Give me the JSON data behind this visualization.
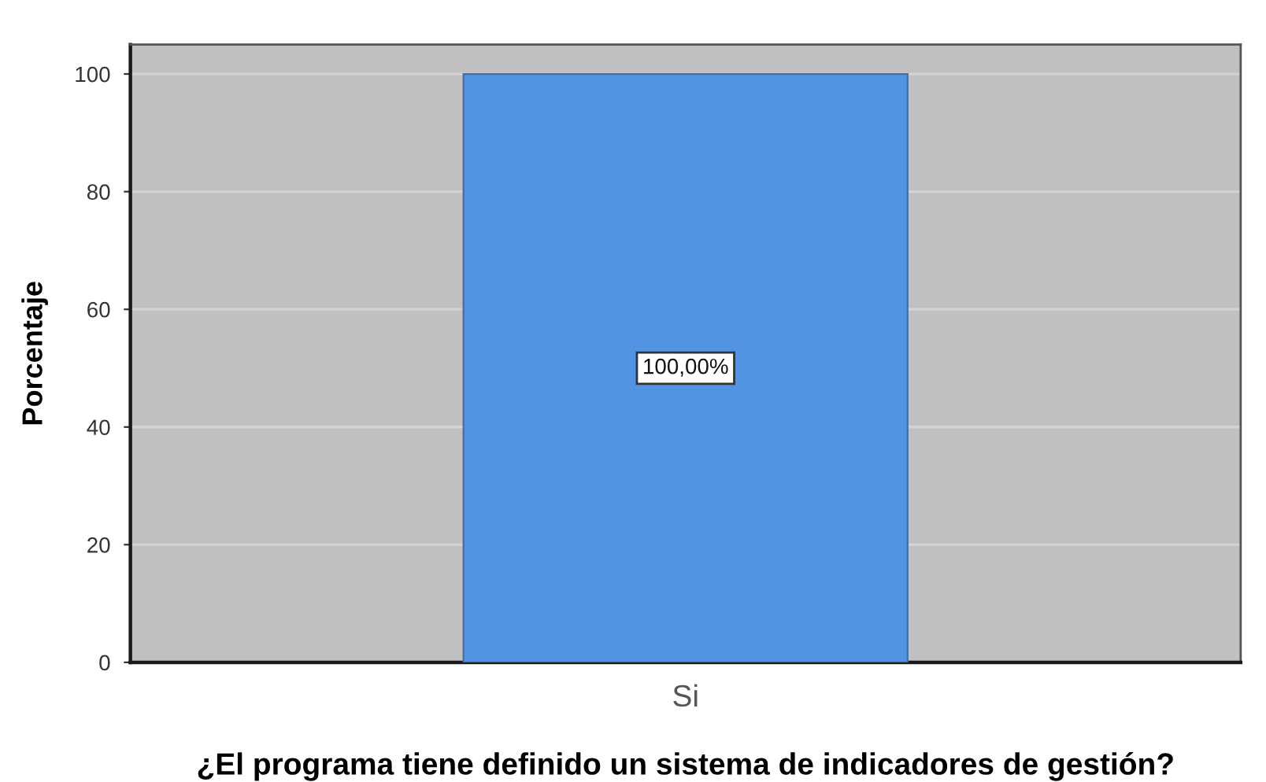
{
  "chart_data": {
    "type": "bar",
    "xlabel": "¿El programa tiene definido un sistema de indicadores de gestión?",
    "ylabel": "Porcentaje",
    "categories": [
      "Si"
    ],
    "values": [
      100
    ],
    "color": "#5294e2",
    "value_labels": [
      "100,00%"
    ],
    "ylim": [
      0,
      105
    ],
    "yticks": [
      0,
      20,
      40,
      60,
      80,
      100
    ],
    "grid": "y"
  }
}
